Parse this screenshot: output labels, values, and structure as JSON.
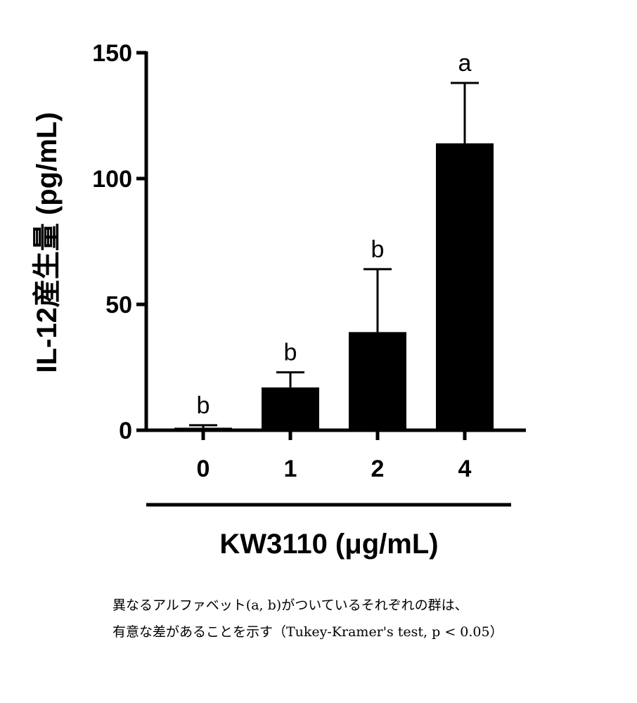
{
  "chart_data": {
    "type": "bar",
    "categories": [
      "0",
      "1",
      "2",
      "4"
    ],
    "values": [
      1,
      17,
      39,
      114
    ],
    "errors": [
      1,
      6,
      25,
      24
    ],
    "significance": [
      "b",
      "b",
      "b",
      "a"
    ],
    "title": "",
    "xlabel": "KW3110 (μg/mL)",
    "ylabel": "IL-12産生量 (pg/mL)",
    "ylim": [
      0,
      150
    ],
    "yticks": [
      "0",
      "50",
      "100",
      "150"
    ],
    "grid": false,
    "bar_color": "#000000"
  },
  "note": {
    "line1": "異なるアルファベット(a, b)がついているそれぞれの群は、",
    "line2": "有意な差があることを示す（Tukey-Kramer's test, p < 0.05）"
  }
}
